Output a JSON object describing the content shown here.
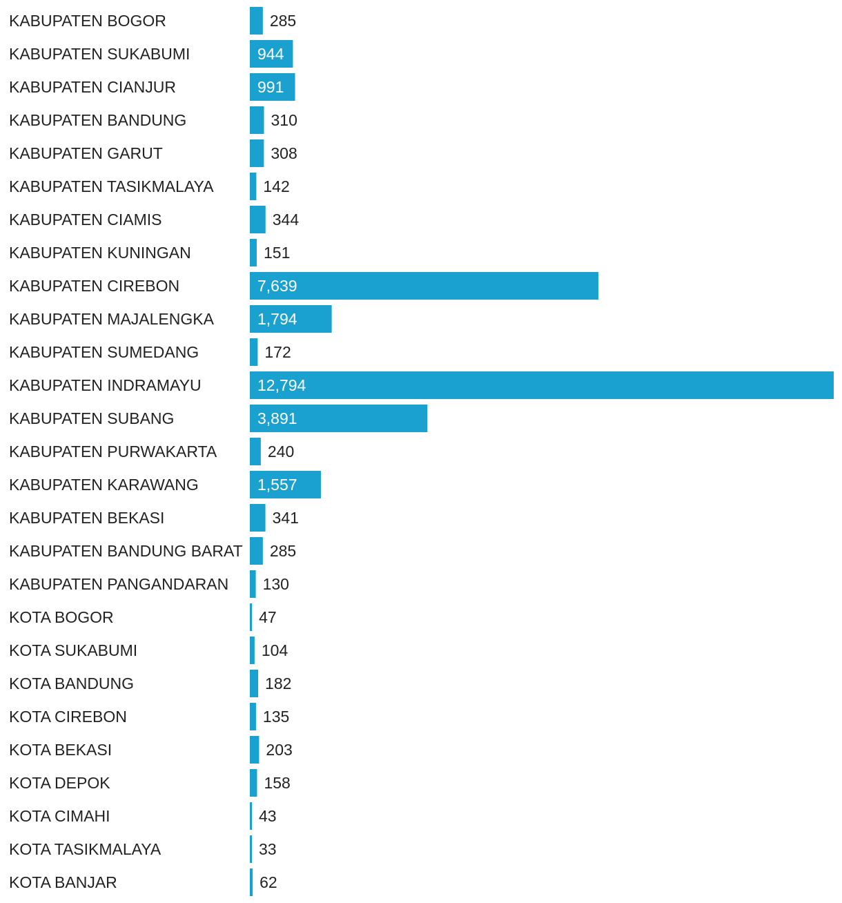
{
  "chart_data": {
    "type": "bar",
    "orientation": "horizontal",
    "title": "",
    "xlabel": "",
    "ylabel": "",
    "grid": false,
    "legend": "none",
    "bar_color": "#1ba1cf",
    "categories": [
      "KABUPATEN BOGOR",
      "KABUPATEN SUKABUMI",
      "KABUPATEN CIANJUR",
      "KABUPATEN BANDUNG",
      "KABUPATEN GARUT",
      "KABUPATEN TASIKMALAYA",
      "KABUPATEN CIAMIS",
      "KABUPATEN KUNINGAN",
      "KABUPATEN CIREBON",
      "KABUPATEN MAJALENGKA",
      "KABUPATEN SUMEDANG",
      "KABUPATEN INDRAMAYU",
      "KABUPATEN SUBANG",
      "KABUPATEN PURWAKARTA",
      "KABUPATEN KARAWANG",
      "KABUPATEN BEKASI",
      "KABUPATEN BANDUNG BARAT",
      "KABUPATEN PANGANDARAN",
      "KOTA BOGOR",
      "KOTA SUKABUMI",
      "KOTA BANDUNG",
      "KOTA CIREBON",
      "KOTA BEKASI",
      "KOTA DEPOK",
      "KOTA CIMAHI",
      "KOTA TASIKMALAYA",
      "KOTA BANJAR"
    ],
    "values": [
      285,
      944,
      991,
      310,
      308,
      142,
      344,
      151,
      7639,
      1794,
      172,
      12794,
      3891,
      240,
      1557,
      341,
      285,
      130,
      47,
      104,
      182,
      135,
      203,
      158,
      43,
      33,
      62
    ],
    "value_labels": [
      "285",
      "944",
      "991",
      "310",
      "308",
      "142",
      "344",
      "151",
      "7,639",
      "1,794",
      "172",
      "12,794",
      "3,891",
      "240",
      "1,557",
      "341",
      "285",
      "130",
      "47",
      "104",
      "182",
      "135",
      "203",
      "158",
      "43",
      "33",
      "62"
    ],
    "xlim": [
      0,
      12794
    ]
  }
}
